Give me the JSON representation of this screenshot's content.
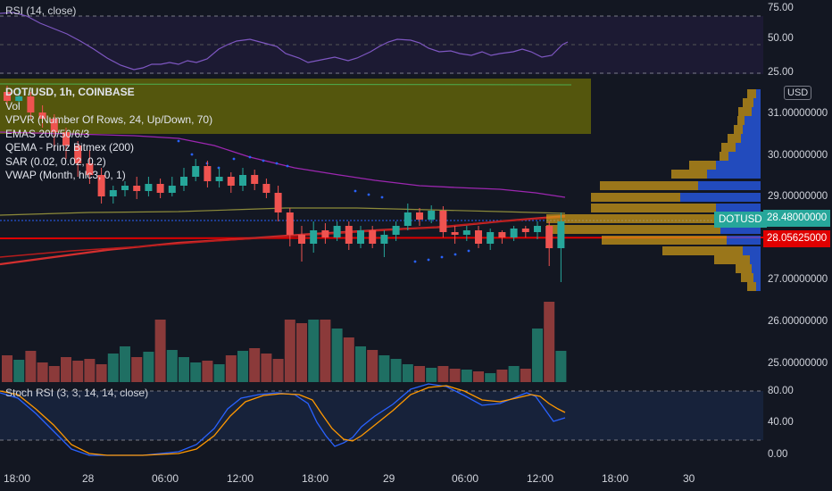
{
  "rsi": {
    "title": "RSI (14, close)"
  },
  "main": {
    "legend": {
      "symbol": "DOT/USD, 1h, COINBASE",
      "vol": "Vol",
      "vpvr": "VPVR (Number Of Rows, 24, Up/Down, 70)",
      "emas": "EMAS 200/50/6/3",
      "qema": "QEMA - Prinz Bitmex (200)",
      "sar": "SAR (0.02, 0.02, 0.2)",
      "vwap": "VWAP (Month, hlc3, 0, 1)"
    },
    "symbol_tag": "DOTUSD"
  },
  "stoch": {
    "title": "Stoch RSI (3, 3, 14, 14, close)"
  },
  "price_axis": {
    "currency": "USD",
    "rsi_labels": [
      "75.00",
      "50.00",
      "25.00"
    ],
    "price_labels": [
      "31.00000000",
      "30.00000000",
      "29.00000000",
      "27.00000000",
      "26.00000000",
      "25.00000000"
    ],
    "current_price": "28.48000000",
    "red_line_price": "28.05625000",
    "stoch_labels": [
      "80.00",
      "40.00",
      "0.00"
    ]
  },
  "time_axis": {
    "labels": [
      "18:00",
      "28",
      "06:00",
      "12:00",
      "18:00",
      "29",
      "06:00",
      "12:00",
      "18:00",
      "30"
    ]
  },
  "colors": {
    "bg": "#131722",
    "up": "#26a69a",
    "down": "#ef5350",
    "rsi_line": "#7e57c2",
    "vpvr_box": "#808000",
    "red_line": "#e00000"
  }
}
